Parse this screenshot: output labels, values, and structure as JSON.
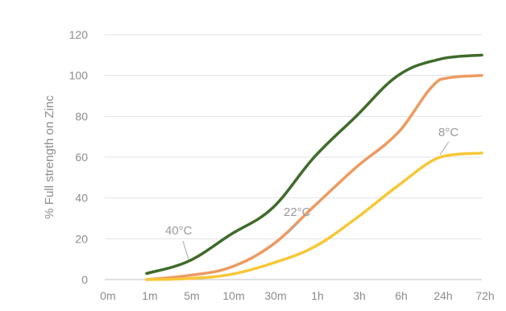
{
  "chart_data": {
    "type": "line",
    "title": "",
    "xlabel": "",
    "ylabel": "% Full strength on Zinc",
    "categories": [
      "0m",
      "1m",
      "5m",
      "10m",
      "30m",
      "1h",
      "3h",
      "6h",
      "24h",
      "72h"
    ],
    "ylim": [
      0,
      120
    ],
    "yticks": [
      0,
      20,
      40,
      60,
      80,
      100,
      120
    ],
    "grid": true,
    "legend": "none",
    "series": [
      {
        "name": "40°C",
        "color": "#3f6b2a",
        "values": [
          null,
          3,
          9,
          22,
          35,
          60,
          80,
          100,
          108,
          110
        ]
      },
      {
        "name": "22°C",
        "color": "#ed9a61",
        "values": [
          null,
          0,
          2,
          6,
          17,
          36,
          55,
          72,
          98,
          100
        ]
      },
      {
        "name": "8°C",
        "color": "#f8c736",
        "values": [
          null,
          0,
          0.5,
          2.5,
          8,
          16,
          30,
          46,
          60,
          62
        ]
      }
    ],
    "annotations": [
      {
        "text": "40°C",
        "series": 0
      },
      {
        "text": "22°C",
        "series": 1
      },
      {
        "text": "8°C",
        "series": 2
      }
    ]
  }
}
